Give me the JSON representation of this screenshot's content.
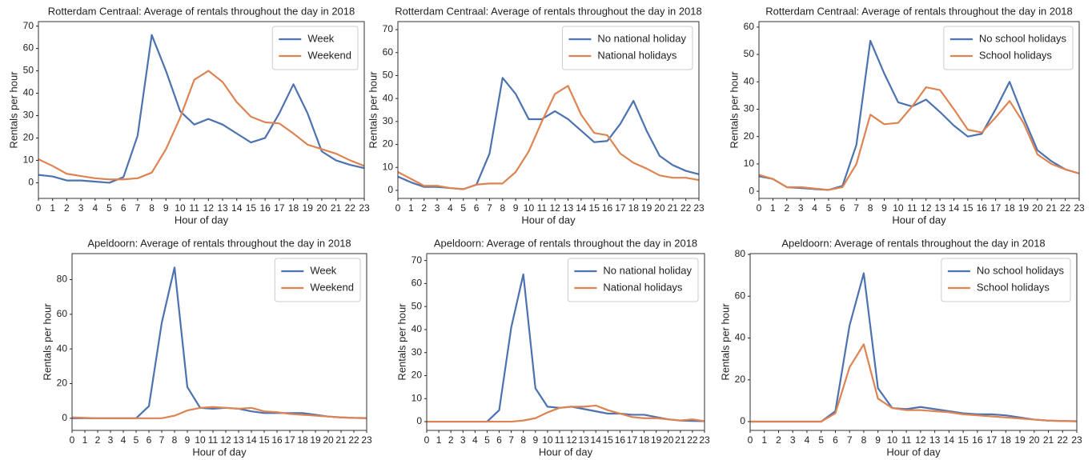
{
  "chart_data": [
    {
      "type": "line",
      "title": "Rotterdam Centraal: Average of rentals throughout the day in 2018",
      "xlabel": "Hour of day",
      "ylabel": "Rentals per hour",
      "x": [
        0,
        1,
        2,
        3,
        4,
        5,
        6,
        7,
        8,
        9,
        10,
        11,
        12,
        13,
        14,
        15,
        16,
        17,
        18,
        19,
        20,
        21,
        22,
        23
      ],
      "series": [
        {
          "name": "Week",
          "color": "#4c72b0",
          "values": [
            3.5,
            2.8,
            1,
            1,
            0.5,
            0,
            2.5,
            21,
            66,
            50,
            32,
            26,
            28.5,
            26,
            22,
            18,
            20,
            31,
            44,
            31,
            14,
            10,
            8,
            6.5
          ]
        },
        {
          "name": "Weekend",
          "color": "#dd8452",
          "values": [
            10.5,
            7.5,
            4,
            3,
            2,
            1.5,
            1.5,
            2,
            4.5,
            15,
            29,
            46,
            50,
            45,
            36,
            29.5,
            27,
            26.5,
            22,
            17,
            15,
            13,
            10,
            7.5
          ]
        }
      ],
      "xlim": [
        0,
        23
      ],
      "xticks": [
        0,
        1,
        2,
        3,
        4,
        5,
        6,
        7,
        8,
        9,
        10,
        11,
        12,
        13,
        14,
        15,
        16,
        17,
        18,
        19,
        20,
        21,
        22,
        23
      ],
      "ylim": [
        -7,
        72
      ],
      "yticks": [
        0,
        10,
        20,
        30,
        40,
        50,
        60,
        70
      ],
      "legend": "upper right"
    },
    {
      "type": "line",
      "title": "Rotterdam Centraal: Average of rentals throughout the day in 2018",
      "xlabel": "Hour of day",
      "ylabel": "Rentals per hour",
      "x": [
        0,
        1,
        2,
        3,
        4,
        5,
        6,
        7,
        8,
        9,
        10,
        11,
        12,
        13,
        14,
        15,
        16,
        17,
        18,
        19,
        20,
        21,
        22,
        23
      ],
      "series": [
        {
          "name": "No national holiday",
          "color": "#4c72b0",
          "values": [
            6,
            3.5,
            1.5,
            1.5,
            1,
            0.5,
            2.5,
            16,
            49,
            42,
            31,
            31,
            34.5,
            31,
            26,
            21,
            21.5,
            29,
            39,
            26,
            15,
            11,
            8.5,
            7
          ]
        },
        {
          "name": "National holidays",
          "color": "#dd8452",
          "values": [
            8,
            5,
            2,
            2,
            1,
            0.5,
            2.5,
            3,
            3,
            8,
            17,
            30,
            42,
            45.5,
            33,
            25,
            24,
            16,
            12,
            9.5,
            6.5,
            5.5,
            5.5,
            4.5
          ]
        }
      ],
      "xlim": [
        0,
        23
      ],
      "xticks": [
        0,
        1,
        2,
        3,
        4,
        5,
        6,
        7,
        8,
        9,
        10,
        11,
        12,
        13,
        14,
        15,
        16,
        17,
        18,
        19,
        20,
        21,
        22,
        23
      ],
      "ylim": [
        -3.5,
        73.5
      ],
      "yticks": [
        0,
        10,
        20,
        30,
        40,
        50,
        60,
        70
      ],
      "legend": "upper right"
    },
    {
      "type": "line",
      "title": "Rotterdam Centraal: Average of rentals throughout the day in 2018",
      "xlabel": "Hour of day",
      "ylabel": "Rentals per hour",
      "x": [
        0,
        1,
        2,
        3,
        4,
        5,
        6,
        7,
        8,
        9,
        10,
        11,
        12,
        13,
        14,
        15,
        16,
        17,
        18,
        19,
        20,
        21,
        22,
        23
      ],
      "series": [
        {
          "name": "No school holidays",
          "color": "#4c72b0",
          "values": [
            5.5,
            4.5,
            1.5,
            1.2,
            0.8,
            0.5,
            2,
            17,
            55,
            43,
            32.5,
            31,
            33.5,
            29,
            24,
            20,
            21,
            30,
            40,
            27,
            15,
            11,
            8,
            6.5
          ]
        },
        {
          "name": "School holidays",
          "color": "#dd8452",
          "values": [
            6,
            4.5,
            1.5,
            1.5,
            1,
            0.5,
            1.5,
            10,
            28,
            24.5,
            25,
            31,
            38,
            37,
            30,
            22.5,
            21.5,
            27,
            33,
            25,
            13.5,
            10,
            8,
            6.5
          ]
        }
      ],
      "xlim": [
        0,
        23
      ],
      "xticks": [
        0,
        1,
        2,
        3,
        4,
        5,
        6,
        7,
        8,
        9,
        10,
        11,
        12,
        13,
        14,
        15,
        16,
        17,
        18,
        19,
        20,
        21,
        22,
        23
      ],
      "ylim": [
        -2.6,
        62
      ],
      "yticks": [
        0,
        10,
        20,
        30,
        40,
        50,
        60
      ],
      "legend": "upper right"
    },
    {
      "type": "line",
      "title": "Apeldoorn: Average of rentals throughout the day in 2018",
      "xlabel": "Hour of day",
      "ylabel": "Rentals per hour",
      "x": [
        0,
        1,
        2,
        3,
        4,
        5,
        6,
        7,
        8,
        9,
        10,
        11,
        12,
        13,
        14,
        15,
        16,
        17,
        18,
        19,
        20,
        21,
        22,
        23
      ],
      "series": [
        {
          "name": "Week",
          "color": "#4c72b0",
          "values": [
            0,
            0,
            0,
            0,
            0,
            0,
            7,
            55,
            87,
            18,
            6,
            5.5,
            6,
            5.5,
            4,
            3,
            3,
            3,
            3,
            2,
            1,
            0.5,
            0.2,
            0.1
          ]
        },
        {
          "name": "Weekend",
          "color": "#dd8452",
          "values": [
            0.5,
            0.2,
            0,
            0,
            0,
            0,
            0,
            0,
            1.5,
            4.5,
            6,
            6.5,
            6,
            5.5,
            6,
            4,
            3.5,
            2.5,
            2,
            1.5,
            1,
            0.5,
            0.2,
            0.1
          ]
        }
      ],
      "xlim": [
        0,
        23
      ],
      "xticks": [
        0,
        1,
        2,
        3,
        4,
        5,
        6,
        7,
        8,
        9,
        10,
        11,
        12,
        13,
        14,
        15,
        16,
        17,
        18,
        19,
        20,
        21,
        22,
        23
      ],
      "ylim": [
        -7,
        95
      ],
      "yticks": [
        0,
        20,
        40,
        60,
        80
      ],
      "legend": "upper right"
    },
    {
      "type": "line",
      "title": "Apeldoorn: Average of rentals throughout the day in 2018",
      "xlabel": "Hour of day",
      "ylabel": "Rentals per hour",
      "x": [
        0,
        1,
        2,
        3,
        4,
        5,
        6,
        7,
        8,
        9,
        10,
        11,
        12,
        13,
        14,
        15,
        16,
        17,
        18,
        19,
        20,
        21,
        22,
        23
      ],
      "series": [
        {
          "name": "No national holiday",
          "color": "#4c72b0",
          "values": [
            0,
            0,
            0,
            0,
            0,
            0,
            5,
            41,
            64,
            14.5,
            6.5,
            6,
            6.5,
            5.5,
            4.5,
            3.5,
            3.5,
            3,
            3,
            2,
            1,
            0.5,
            0.3,
            0.2
          ]
        },
        {
          "name": "National holidays",
          "color": "#dd8452",
          "values": [
            0,
            0,
            0,
            0,
            0,
            0,
            0,
            0,
            0.5,
            1.5,
            4,
            6,
            6.5,
            6.5,
            7,
            5,
            3.5,
            2,
            1.5,
            1.5,
            1,
            0.5,
            1,
            0.2
          ]
        }
      ],
      "xlim": [
        0,
        23
      ],
      "xticks": [
        0,
        1,
        2,
        3,
        4,
        5,
        6,
        7,
        8,
        9,
        10,
        11,
        12,
        13,
        14,
        15,
        16,
        17,
        18,
        19,
        20,
        21,
        22,
        23
      ],
      "ylim": [
        -3.8,
        73
      ],
      "yticks": [
        0,
        10,
        20,
        30,
        40,
        50,
        60,
        70
      ],
      "legend": "upper right"
    },
    {
      "type": "line",
      "title": "Apeldoorn: Average of rentals throughout the day in 2018",
      "xlabel": "Hour of day",
      "ylabel": "Rentals per hour",
      "x": [
        0,
        1,
        2,
        3,
        4,
        5,
        6,
        7,
        8,
        9,
        10,
        11,
        12,
        13,
        14,
        15,
        16,
        17,
        18,
        19,
        20,
        21,
        22,
        23
      ],
      "series": [
        {
          "name": "No school holidays",
          "color": "#4c72b0",
          "values": [
            0,
            0,
            0,
            0,
            0,
            0,
            5,
            46,
            71,
            16,
            6.5,
            6,
            7,
            6,
            5,
            4,
            3.5,
            3.5,
            3,
            2,
            1,
            0.5,
            0.3,
            0.2
          ]
        },
        {
          "name": "School holidays",
          "color": "#dd8452",
          "values": [
            0,
            0,
            0,
            0,
            0,
            0,
            4,
            26,
            37,
            11,
            6.5,
            5.5,
            5.5,
            5,
            4.5,
            3.5,
            3,
            2.5,
            2,
            1.5,
            1,
            0.5,
            0.3,
            0.1
          ]
        }
      ],
      "xlim": [
        0,
        23
      ],
      "xticks": [
        0,
        1,
        2,
        3,
        4,
        5,
        6,
        7,
        8,
        9,
        10,
        11,
        12,
        13,
        14,
        15,
        16,
        17,
        18,
        19,
        20,
        21,
        22,
        23
      ],
      "ylim": [
        -4.2,
        80.4
      ],
      "yticks": [
        0,
        20,
        40,
        60,
        80
      ],
      "legend": "upper right"
    }
  ]
}
